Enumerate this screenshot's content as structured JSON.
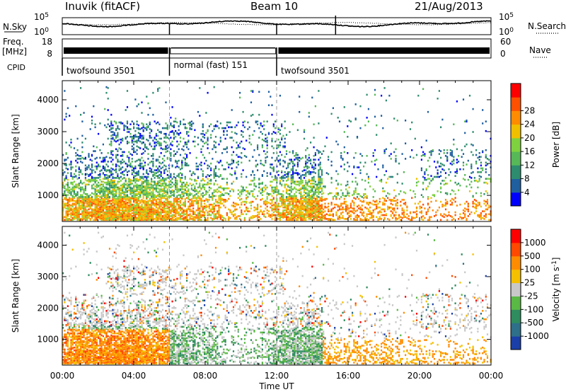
{
  "header": {
    "station": "Inuvik (fitACF)",
    "beam": "Beam 10",
    "date": "21/Aug/2013"
  },
  "chart_data": [
    {
      "type": "line",
      "panel": "noise",
      "left_label": "N.Sky",
      "right_label": "N.Search",
      "left_ticks": [
        "10^5",
        "10^0"
      ],
      "right_ticks": [
        "10^5",
        "10^0"
      ]
    },
    {
      "type": "line",
      "panel": "frequency",
      "left_label_top": "Freq.",
      "left_label_bottom": "[MHz]",
      "left_ticks": [
        "18",
        "8"
      ],
      "right_label": "Nave",
      "right_ticks": [
        "60",
        "0"
      ]
    },
    {
      "type": "table",
      "panel": "cpid",
      "label": "CPID",
      "segments": [
        {
          "start_h": 0,
          "end_h": 6,
          "label": "twofsound 3501"
        },
        {
          "start_h": 6,
          "end_h": 12,
          "label": "normal (fast) 151"
        },
        {
          "start_h": 12,
          "end_h": 24,
          "label": "twofsound 3501"
        }
      ]
    },
    {
      "type": "heatmap",
      "panel": "power",
      "ylabel": "Slant Range [km]",
      "yticks": [
        1000,
        2000,
        3000,
        4000
      ],
      "ylim": [
        180,
        4600
      ],
      "xlim": [
        0,
        24
      ],
      "colorbar_label": "Power [dB]",
      "colorbar_ticks": [
        "4",
        "8",
        "12",
        "16",
        "20",
        "24",
        "28"
      ],
      "colors": [
        "#0000ff",
        "#1f5fa0",
        "#2e8c6e",
        "#57b857",
        "#7fd23f",
        "#f0c000",
        "#ff8c00",
        "#ff5000",
        "#ff0000"
      ]
    },
    {
      "type": "heatmap",
      "panel": "velocity",
      "ylabel": "Slant Range [km]",
      "yticks": [
        1000,
        2000,
        3000,
        4000
      ],
      "ylim": [
        180,
        4600
      ],
      "xlim": [
        0,
        24
      ],
      "xticks": [
        "00:00",
        "04:00",
        "08:00",
        "12:00",
        "16:00",
        "20:00",
        "00:00"
      ],
      "xlabel": "Time UT",
      "colorbar_label": "Velocity [m s^-1]",
      "colorbar_ticks": [
        "1000",
        "500",
        "100",
        "25",
        "-25",
        "-100",
        "-500",
        "-1000"
      ],
      "colors": [
        "#1a3fa8",
        "#2e6f8a",
        "#2e8c5e",
        "#5ab845",
        "#c8c8c8",
        "#f5c000",
        "#ff8c00",
        "#ff4800",
        "#ff0000"
      ]
    }
  ]
}
